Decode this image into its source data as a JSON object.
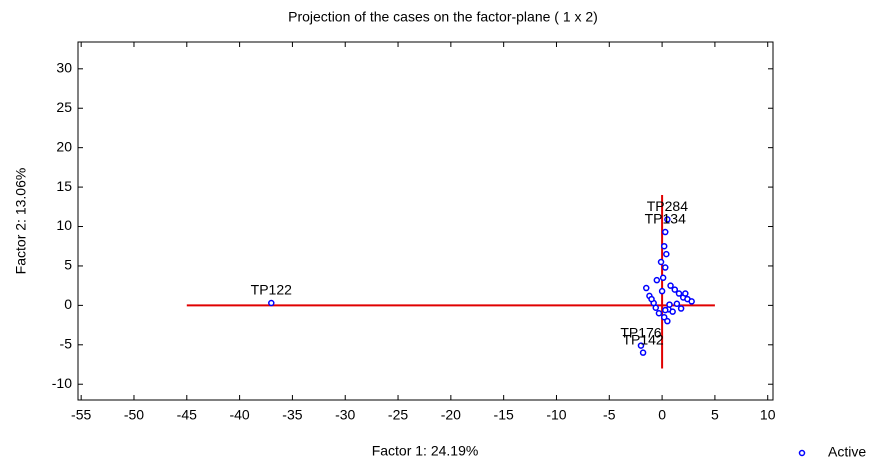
{
  "chart_data": {
    "type": "scatter",
    "title": "Projection of the cases on the factor-plane (  1 x   2)",
    "x_label": "Factor 1: 24.19%",
    "y_label": "Factor 2: 13.06%",
    "xlim": [
      -55.3,
      10.5
    ],
    "ylim": [
      -12,
      33.4
    ],
    "xticks": [
      -55,
      -50,
      -45,
      -40,
      -35,
      -30,
      -25,
      -20,
      -15,
      -10,
      -5,
      0,
      5,
      10
    ],
    "yticks": [
      -10,
      -5,
      0,
      5,
      10,
      15,
      20,
      25,
      30
    ],
    "reference_lines": [
      {
        "orientation": "horizontal",
        "at": 0,
        "from": -45,
        "to": 5,
        "color": "#e00000"
      },
      {
        "orientation": "vertical",
        "at": 0,
        "from": -8,
        "to": 14,
        "color": "#e00000"
      }
    ],
    "legend": "bottom-right",
    "series": [
      {
        "name": "Active",
        "color": "#0000ff",
        "x": [
          -37,
          0.5,
          0.3,
          -2,
          -1.8,
          0.2,
          0.4,
          -0.1,
          0.3,
          0.1,
          -0.5,
          0.8,
          1.2,
          1.6,
          2.0,
          2.4,
          2.8,
          -1.2,
          -0.8,
          0.6,
          1.0,
          -1.5,
          -0.3,
          0.2,
          0.5,
          1.4,
          -0.6,
          0.0,
          0.3,
          1.8,
          2.2,
          -1.0,
          0.7
        ],
        "values": [
          0.3,
          10.9,
          9.3,
          -5.1,
          -6.0,
          7.5,
          6.5,
          5.5,
          4.8,
          3.5,
          3.2,
          2.5,
          2.0,
          1.5,
          1.0,
          0.8,
          0.5,
          1.2,
          0.3,
          -0.5,
          -0.8,
          2.2,
          -1.0,
          -1.5,
          -2.0,
          0.2,
          -0.3,
          1.8,
          -0.6,
          -0.4,
          1.5,
          0.8,
          0.1
        ],
        "labels": [
          "TP122",
          "TP284",
          "TP134",
          "TP176",
          "TP142",
          null,
          null,
          null,
          null,
          null,
          null,
          null,
          null,
          null,
          null,
          null,
          null,
          null,
          null,
          null,
          null,
          null,
          null,
          null,
          null,
          null,
          null,
          null,
          null,
          null,
          null,
          null,
          null
        ]
      }
    ]
  }
}
